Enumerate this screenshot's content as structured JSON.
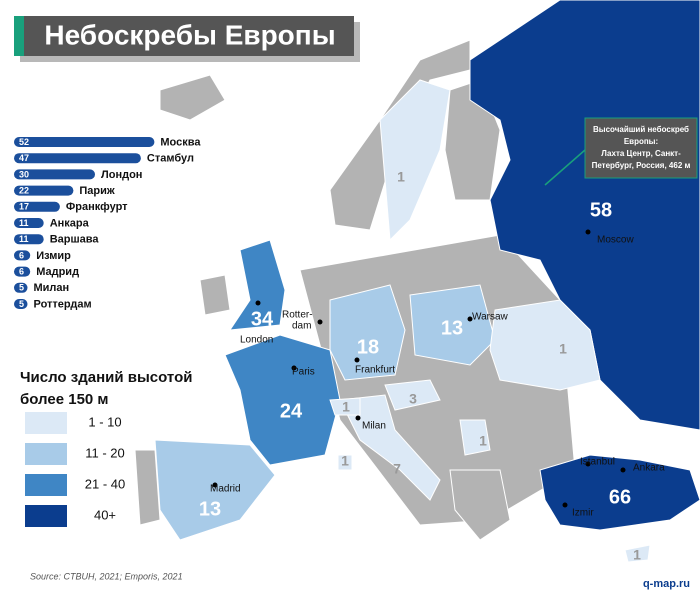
{
  "title": "Небоскребы Европы",
  "chart_data": {
    "type": "bar",
    "categories": [
      "Москва",
      "Стамбул",
      "Лондон",
      "Париж",
      "Франкфурт",
      "Анкара",
      "Варшава",
      "Измир",
      "Мадрид",
      "Милан",
      "Роттердам"
    ],
    "values": [
      52,
      47,
      30,
      22,
      17,
      11,
      11,
      6,
      6,
      5,
      5
    ],
    "color": "#1b4f9c"
  },
  "legend": {
    "title": [
      "Число зданий высотой",
      "более 150 м"
    ],
    "classes": [
      {
        "label": "1 - 10",
        "color": "#dce9f6"
      },
      {
        "label": "11 - 20",
        "color": "#a8cbe8"
      },
      {
        "label": "21 - 40",
        "color": "#3f86c5"
      },
      {
        "label": "40+",
        "color": "#0b3d8e"
      }
    ]
  },
  "map": {
    "countries": [
      {
        "value": 58,
        "color": "#0b3d8e"
      },
      {
        "value": 66,
        "color": "#0b3d8e"
      },
      {
        "value": 34,
        "color": "#3f86c5"
      },
      {
        "value": 24,
        "color": "#3f86c5"
      },
      {
        "value": 18,
        "color": "#a8cbe8"
      },
      {
        "value": 13,
        "color": "#a8cbe8"
      },
      {
        "value": 13,
        "color": "#a8cbe8"
      },
      {
        "value": 7,
        "color": "#dce9f6"
      },
      {
        "value": 1,
        "color": "#dce9f6"
      },
      {
        "value": 1,
        "color": "#dce9f6"
      },
      {
        "value": 3,
        "color": "#dce9f6"
      },
      {
        "value": 1,
        "color": "#dce9f6"
      },
      {
        "value": 1,
        "color": "#dce9f6"
      },
      {
        "value": 1,
        "color": "#dce9f6"
      },
      {
        "value": 1,
        "color": "#dce9f6"
      }
    ],
    "cities": [
      "Moscow",
      "Istanbul",
      "Ankara",
      "Izmir",
      "Warsaw",
      "Frankfurt",
      "Milan",
      "Paris",
      "Madrid",
      "London",
      "Rotter-",
      "dam"
    ],
    "callout": [
      "Высочайший небоскреб",
      "Европы:",
      "Лахта Центр, Санкт-",
      "Петербург, Россия, 462 м"
    ],
    "source": "Source: CTBUH, 2021; Emporis, 2021",
    "credit": "q-map.ru"
  }
}
